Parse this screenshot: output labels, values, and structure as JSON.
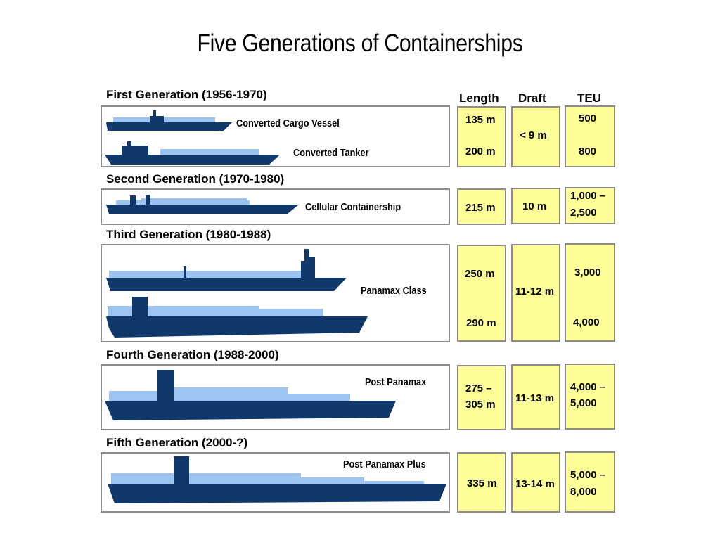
{
  "title": "Five Generations of Containerships",
  "columns": {
    "length": "Length",
    "draft": "Draft",
    "teu": "TEU"
  },
  "colors": {
    "hull": "#11386b",
    "containers": "#9dc3f0",
    "cell_fill": "#ffff99",
    "border": "#8c8c8c"
  },
  "generations": [
    {
      "label": "First Generation (1956-1970)",
      "ships": [
        "Converted Cargo Vessel",
        "Converted Tanker"
      ],
      "length": [
        "135 m",
        "200 m"
      ],
      "draft": [
        "< 9 m"
      ],
      "teu": [
        "500",
        "800"
      ]
    },
    {
      "label": "Second Generation (1970-1980)",
      "ships": [
        "Cellular Containership"
      ],
      "length": [
        "215 m"
      ],
      "draft": [
        "10 m"
      ],
      "teu": [
        "1,000 –",
        "2,500"
      ]
    },
    {
      "label": "Third Generation (1980-1988)",
      "ships": [
        "Panamax Class"
      ],
      "length": [
        "250 m",
        "290 m"
      ],
      "draft": [
        "11-12 m"
      ],
      "teu": [
        "3,000",
        "4,000"
      ]
    },
    {
      "label": "Fourth Generation (1988-2000)",
      "ships": [
        "Post Panamax"
      ],
      "length": [
        "275 –",
        "305 m"
      ],
      "draft": [
        "11-13 m"
      ],
      "teu": [
        "4,000 –",
        "5,000"
      ]
    },
    {
      "label": "Fifth Generation (2000-?)",
      "ships": [
        "Post Panamax Plus"
      ],
      "length": [
        "335 m"
      ],
      "draft": [
        "13-14 m"
      ],
      "teu": [
        "5,000 –",
        "8,000"
      ]
    }
  ]
}
